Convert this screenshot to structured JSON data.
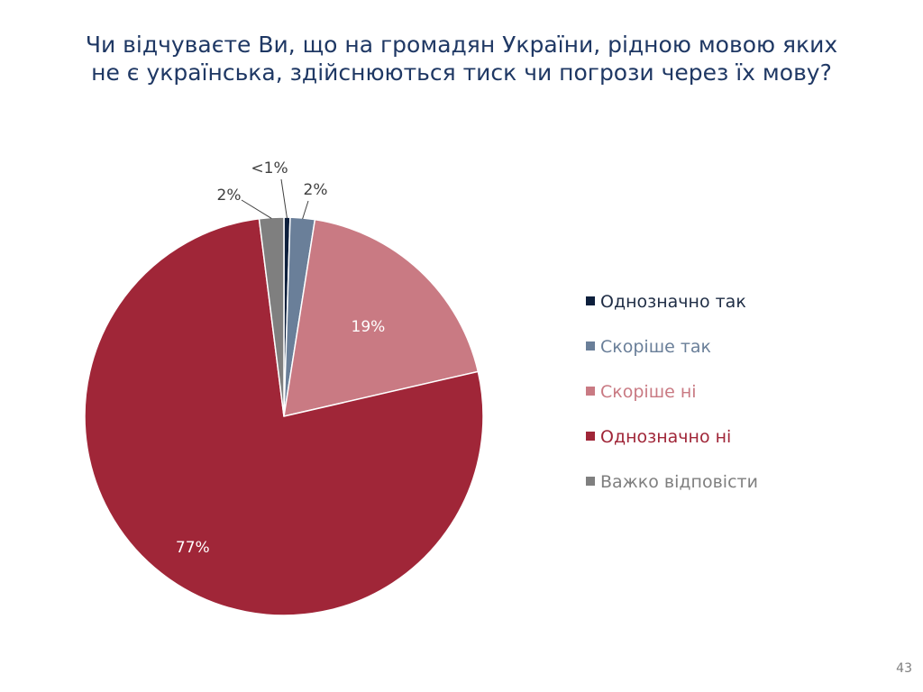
{
  "slide": {
    "title_line1": "Чи відчуваєте Ви, що на громадян України, рідною мовою яких",
    "title_line2": "не є українська, здійснюються тиск чи погрози через їх мову?",
    "page_number": "43"
  },
  "chart_data": {
    "type": "pie",
    "title": "Чи відчуваєте Ви, що на громадян України, рідною мовою яких не є українська, здійснюються тиск чи погрози через їх мову?",
    "start_angle_deg": 0,
    "direction": "clockwise",
    "legend_position": "right",
    "slices": [
      {
        "name": "Однозначно так",
        "value": 0.5,
        "label": "<1%",
        "color": "#0d1f3c",
        "label_text_color": "#404040",
        "label_outside": true
      },
      {
        "name": "Скоріше так",
        "value": 2,
        "label": "2%",
        "color": "#6a7f99",
        "label_text_color": "#404040",
        "label_outside": true
      },
      {
        "name": "Скоріше ні",
        "value": 19,
        "label": "19%",
        "color": "#c97a83",
        "label_text_color": "#ffffff",
        "label_outside": false
      },
      {
        "name": "Однозначно ні",
        "value": 77,
        "label": "77%",
        "color": "#a02638",
        "label_text_color": "#ffffff",
        "label_outside": false
      },
      {
        "name": "Важко відповісти",
        "value": 2,
        "label": "2%",
        "color": "#7f7f7f",
        "label_text_color": "#404040",
        "label_outside": true
      }
    ]
  }
}
